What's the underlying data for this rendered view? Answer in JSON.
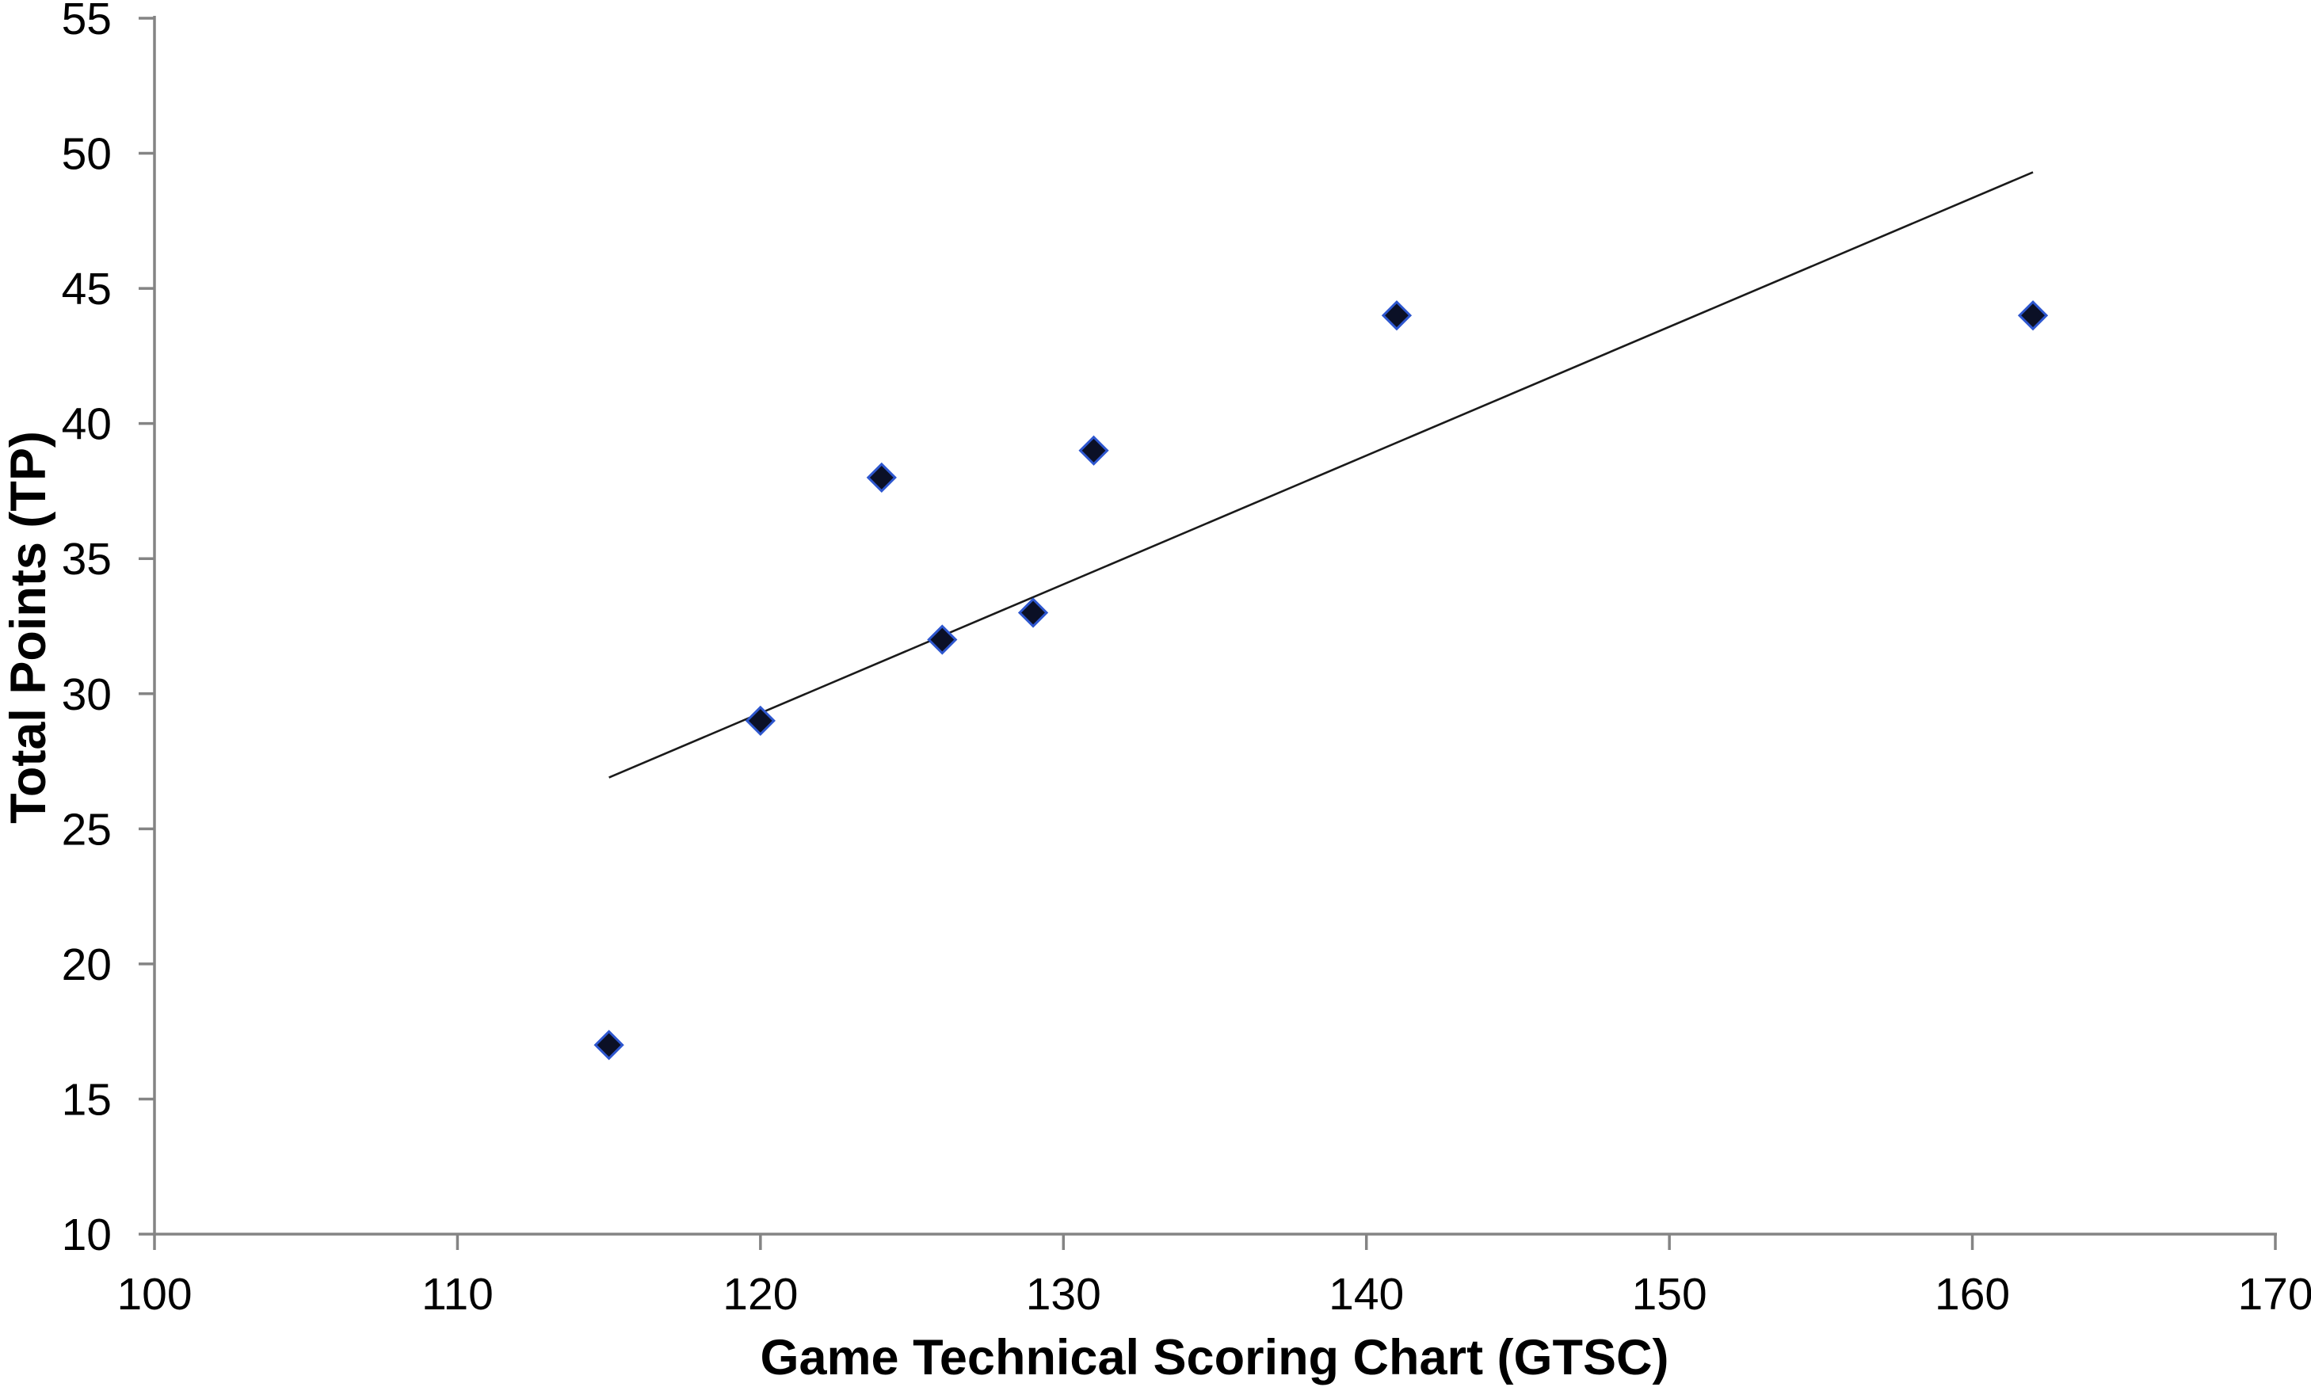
{
  "chart_data": {
    "type": "scatter",
    "title": "",
    "xlabel": "Game Technical Scoring Chart (GTSC)",
    "ylabel": "Total Points (TP)",
    "xlim": [
      100,
      170
    ],
    "ylim": [
      10,
      55
    ],
    "x_ticks": [
      100,
      110,
      120,
      130,
      140,
      150,
      160,
      170
    ],
    "y_ticks": [
      10,
      15,
      20,
      25,
      30,
      35,
      40,
      45,
      50,
      55
    ],
    "grid": false,
    "legend": false,
    "points": [
      [
        115,
        17
      ],
      [
        120,
        29
      ],
      [
        124,
        38
      ],
      [
        126,
        32
      ],
      [
        129,
        33
      ],
      [
        131,
        39
      ],
      [
        141,
        44
      ],
      [
        162,
        44
      ]
    ],
    "trendline": {
      "x1": 115,
      "y1": 26.9,
      "x2": 162,
      "y2": 49.3
    },
    "marker": {
      "shape": "diamond",
      "size": 34
    },
    "colors": {
      "axis": "#848484",
      "tick_label": "#000000",
      "axis_title": "#000000",
      "marker_fill": "#0b1026",
      "marker_edge": "#2e57cf",
      "trendline": "#1a1a1a",
      "background": "#ffffff"
    }
  }
}
